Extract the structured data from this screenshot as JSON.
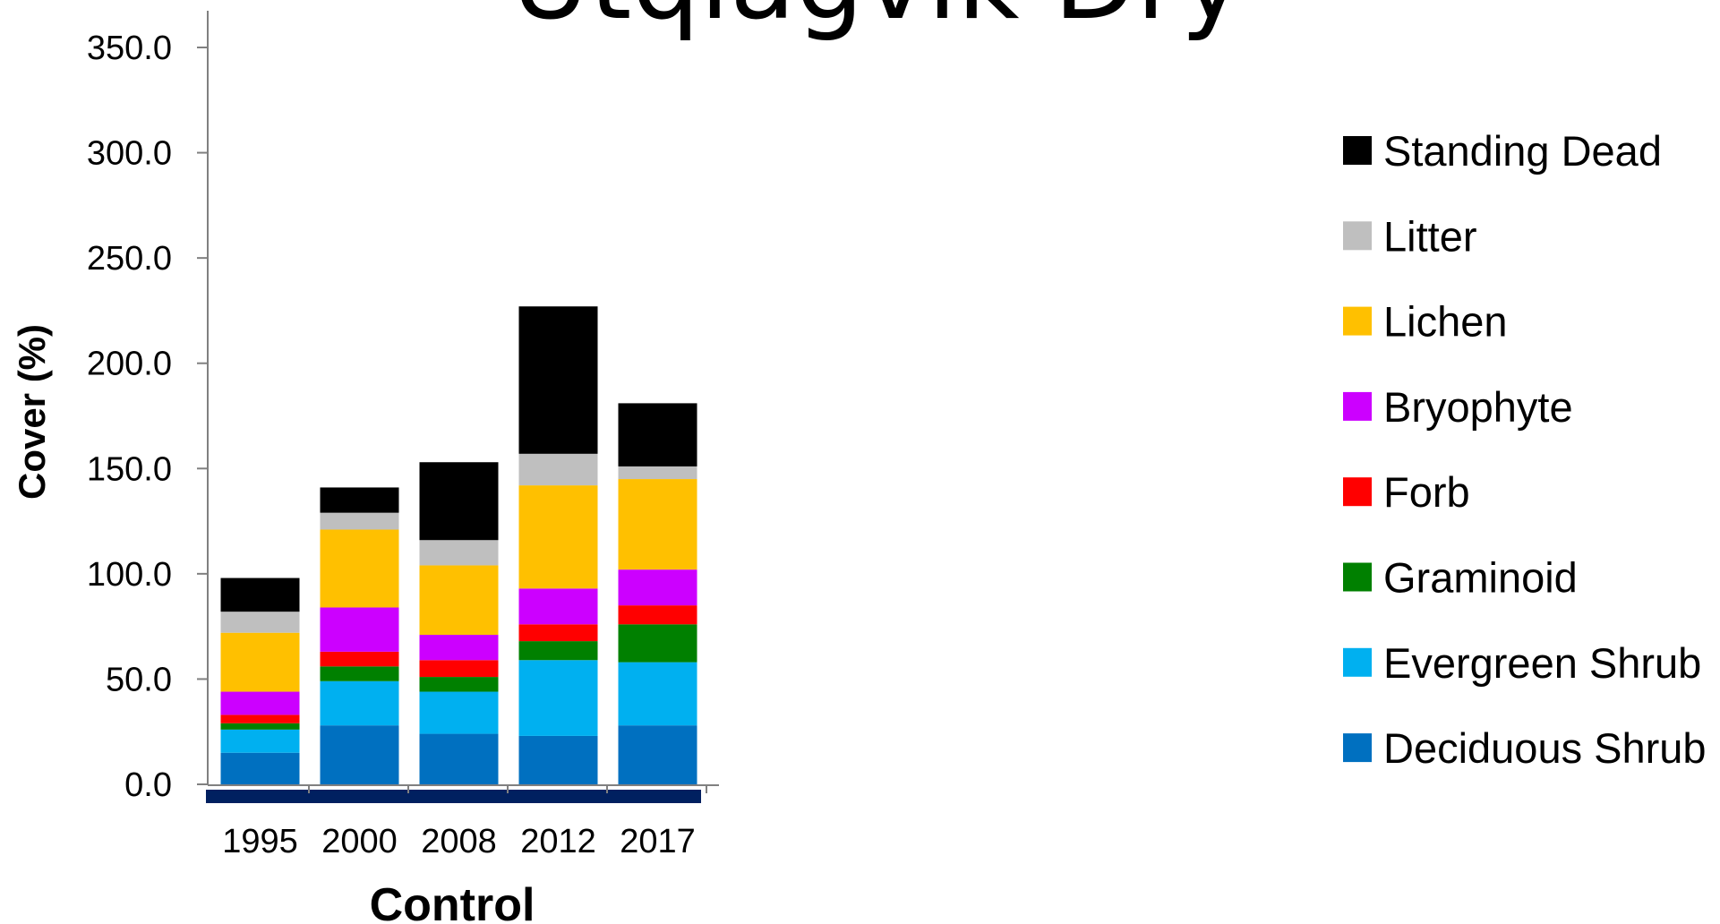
{
  "title": "Utqiagvik Dry",
  "chart_data": {
    "type": "bar",
    "stacked": true,
    "title": "Utqiagvik Dry",
    "xlabel": "Control",
    "ylabel": "Cover (%)",
    "ylim": [
      0,
      350
    ],
    "ytick_labels": [
      "0.0",
      "50.0",
      "100.0",
      "150.0",
      "200.0",
      "250.0",
      "300.0",
      "350.0"
    ],
    "categories": [
      "1995",
      "2000",
      "2008",
      "2012",
      "2017"
    ],
    "grid": false,
    "legend_position": "right",
    "series": [
      {
        "name": "Deciduous Shrub",
        "color": "#0070C0",
        "values": [
          15,
          28,
          24,
          23,
          28
        ]
      },
      {
        "name": "Evergreen Shrub",
        "color": "#00B0F0",
        "values": [
          11,
          21,
          20,
          36,
          30
        ]
      },
      {
        "name": "Graminoid",
        "color": "#008000",
        "values": [
          3,
          7,
          7,
          9,
          18
        ]
      },
      {
        "name": "Forb",
        "color": "#FF0000",
        "values": [
          4,
          7,
          8,
          8,
          9
        ]
      },
      {
        "name": "Bryophyte",
        "color": "#CC00FF",
        "values": [
          11,
          21,
          12,
          17,
          17
        ]
      },
      {
        "name": "Lichen",
        "color": "#FFC000",
        "values": [
          28,
          37,
          33,
          49,
          43
        ]
      },
      {
        "name": "Litter",
        "color": "#BFBFBF",
        "values": [
          10,
          8,
          12,
          15,
          6
        ]
      },
      {
        "name": "Standing Dead",
        "color": "#000000",
        "values": [
          16,
          12,
          37,
          70,
          30
        ]
      }
    ]
  }
}
